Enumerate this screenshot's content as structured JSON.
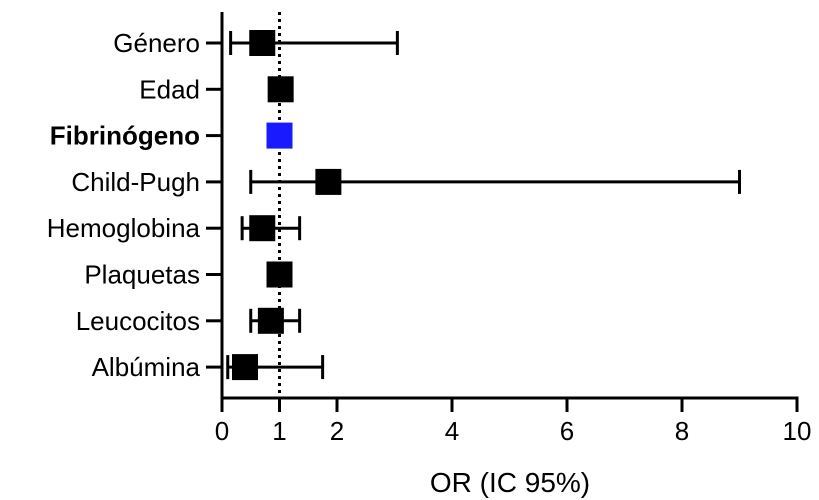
{
  "chart_data": {
    "type": "forest",
    "xlabel": "OR (IC 95%)",
    "xlim": [
      0,
      10
    ],
    "xticks": [
      0,
      1,
      2,
      4,
      6,
      8,
      10
    ],
    "xtick_labels": [
      "0",
      "1",
      "2",
      "4",
      "6",
      "8",
      "10"
    ],
    "reference_line": 1,
    "categories": [
      {
        "label": "Género",
        "or": 0.7,
        "lower": 0.15,
        "upper": 3.05,
        "color": "#000000",
        "bold": false
      },
      {
        "label": "Edad",
        "or": 1.02,
        "lower": 1.0,
        "upper": 1.04,
        "color": "#000000",
        "bold": false
      },
      {
        "label": "Fibrinógeno",
        "or": 1.0,
        "lower": 0.99,
        "upper": 1.01,
        "color": "#1a1aff",
        "bold": true
      },
      {
        "label": "Child-Pugh",
        "or": 1.85,
        "lower": 0.5,
        "upper": 9.0,
        "color": "#000000",
        "bold": false
      },
      {
        "label": "Hemoglobina",
        "or": 0.7,
        "lower": 0.35,
        "upper": 1.35,
        "color": "#000000",
        "bold": false
      },
      {
        "label": "Plaquetas",
        "or": 1.0,
        "lower": 0.99,
        "upper": 1.01,
        "color": "#000000",
        "bold": false
      },
      {
        "label": "Leucocitos",
        "or": 0.85,
        "lower": 0.5,
        "upper": 1.35,
        "color": "#000000",
        "bold": false
      },
      {
        "label": "Albúmina",
        "or": 0.4,
        "lower": 0.1,
        "upper": 1.75,
        "color": "#000000",
        "bold": false
      }
    ]
  }
}
